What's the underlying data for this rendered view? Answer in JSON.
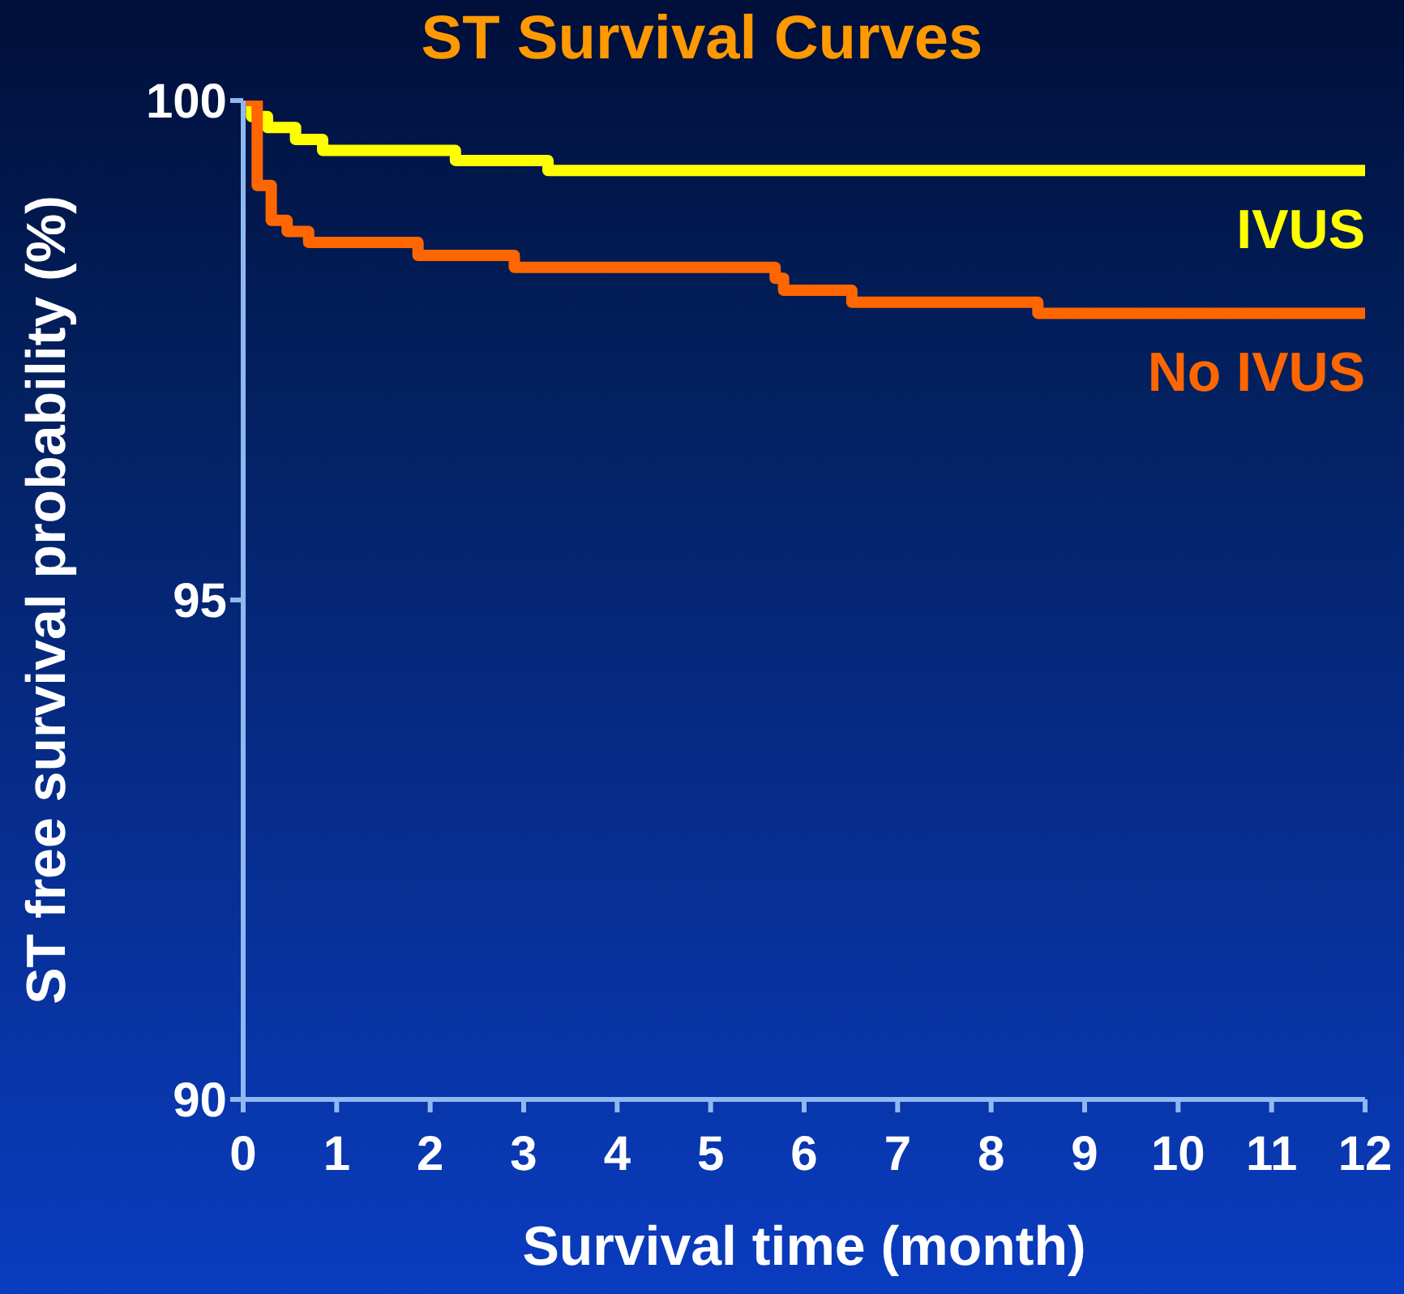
{
  "chart_data": {
    "type": "step",
    "title": "ST Survival Curves",
    "xlabel": "Survival time (month)",
    "ylabel": "ST free survival probability (%)",
    "xlim": [
      0,
      12
    ],
    "xticks": [
      0,
      1,
      2,
      3,
      4,
      5,
      6,
      7,
      8,
      9,
      10,
      11,
      12
    ],
    "ylim": [
      90,
      100
    ],
    "yticks": [
      90,
      95,
      100
    ],
    "series": [
      {
        "name": "IVUS",
        "color": "#ffff00",
        "x": [
          0,
          0.09,
          0.26,
          0.56,
          0.85,
          2.27,
          3.26,
          12
        ],
        "values": [
          100,
          99.84,
          99.73,
          99.61,
          99.5,
          99.4,
          99.3,
          99.3
        ]
      },
      {
        "name": "No IVUS",
        "color": "#ff6600",
        "x": [
          0,
          0.15,
          0.3,
          0.47,
          0.7,
          1.87,
          2.9,
          5.69,
          5.78,
          6.51,
          8.5,
          12
        ],
        "values": [
          100,
          99.15,
          98.8,
          98.69,
          98.58,
          98.45,
          98.33,
          98.22,
          98.1,
          97.98,
          97.87,
          97.87
        ]
      }
    ]
  }
}
